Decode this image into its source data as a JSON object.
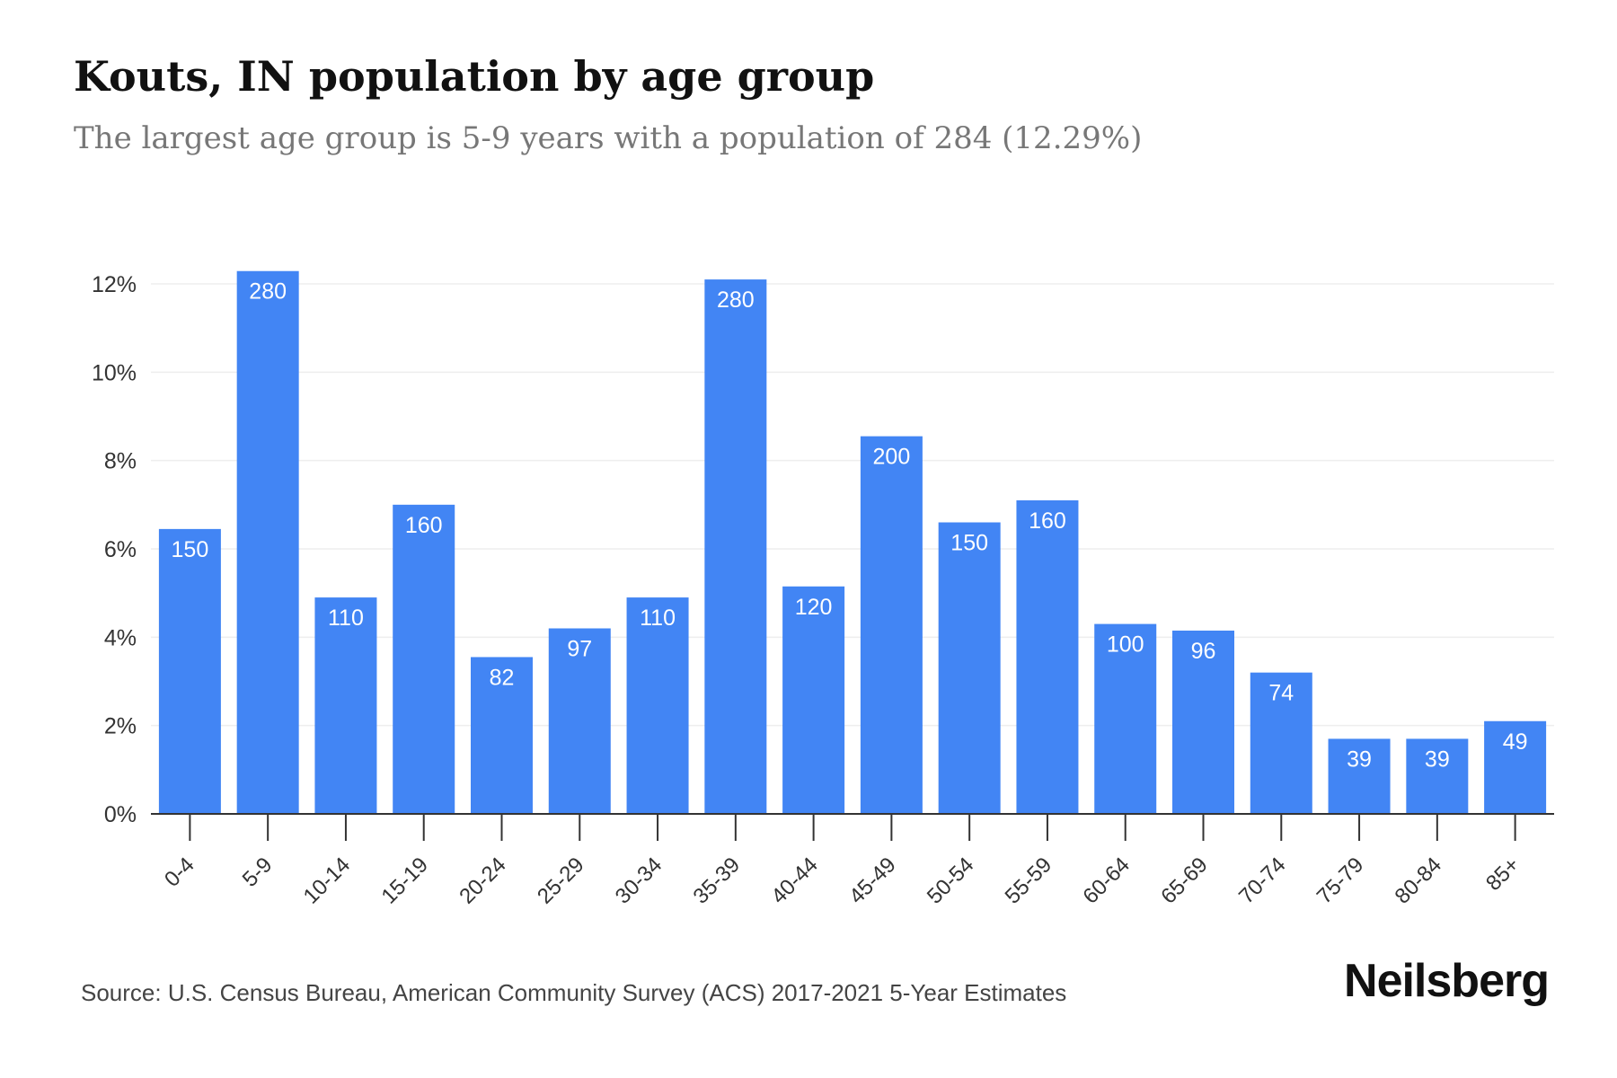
{
  "header": {
    "title": "Kouts, IN population by age group",
    "subtitle": "The largest age group is 5-9 years with a population of 284 (12.29%)"
  },
  "footer": {
    "source": "Source: U.S. Census Bureau, American Community Survey (ACS) 2017-2021 5-Year Estimates",
    "brand": "Neilsberg"
  },
  "colors": {
    "bar": "#4285f4",
    "bar_label": "#ffffff",
    "grid": "#eeeeee",
    "axis": "#333333",
    "tick_text": "#333333"
  },
  "chart_data": {
    "type": "bar",
    "title": "Kouts, IN population by age group",
    "subtitle": "The largest age group is 5-9 years with a population of 284 (12.29%)",
    "xlabel": "",
    "ylabel": "",
    "categories": [
      "0-4",
      "5-9",
      "10-14",
      "15-19",
      "20-24",
      "25-29",
      "30-34",
      "35-39",
      "40-44",
      "45-49",
      "50-54",
      "55-59",
      "60-64",
      "65-69",
      "70-74",
      "75-79",
      "80-84",
      "85+"
    ],
    "values": [
      6.45,
      12.29,
      4.9,
      7.0,
      3.55,
      4.2,
      4.9,
      12.1,
      5.15,
      8.55,
      6.6,
      7.1,
      4.3,
      4.15,
      3.2,
      1.7,
      1.7,
      2.1
    ],
    "data_labels": [
      "150",
      "280",
      "110",
      "160",
      "82",
      "97",
      "110",
      "280",
      "120",
      "200",
      "150",
      "160",
      "100",
      "96",
      "74",
      "39",
      "39",
      "49"
    ],
    "yticks": [
      0,
      2,
      4,
      6,
      8,
      10,
      12
    ],
    "ytick_labels": [
      "0%",
      "2%",
      "4%",
      "6%",
      "8%",
      "10%",
      "12%"
    ],
    "ylim": [
      0,
      12.3
    ],
    "grid": true,
    "legend": "none"
  }
}
